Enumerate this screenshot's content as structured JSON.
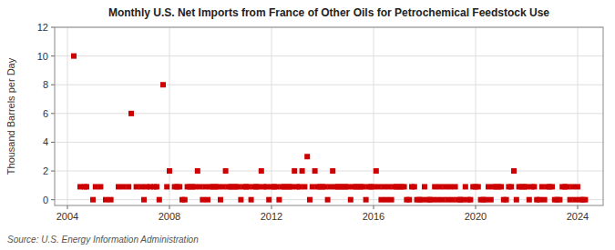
{
  "chart_data": {
    "type": "scatter",
    "title": "Monthly U.S. Net Imports from France of Other Oils for Petrochemical Feedstock Use",
    "ylabel": "Thousand Barrels per Day",
    "annotations": [
      "Source: U.S. Energy Information Administration"
    ],
    "color": "#cc0000",
    "marker": "square",
    "grid": true,
    "xlim": [
      2003.5,
      2025.0
    ],
    "xticks": [
      2004,
      2008,
      2012,
      2016,
      2020,
      2024
    ],
    "ylim": [
      -0.4,
      12
    ],
    "yticks": [
      0,
      2,
      4,
      6,
      8,
      10,
      12
    ],
    "x": [
      2004.25,
      2004.5,
      2004.67,
      2004.75,
      2005.0,
      2005.1,
      2005.3,
      2005.5,
      2005.7,
      2006.0,
      2006.2,
      2006.4,
      2006.5,
      2006.7,
      2006.9,
      2007.0,
      2007.1,
      2007.25,
      2007.4,
      2007.5,
      2007.6,
      2007.75,
      2007.9,
      2008.0,
      2008.2,
      2008.3,
      2008.4,
      2008.5,
      2008.6,
      2008.7,
      2008.8,
      2008.9,
      2009.0,
      2009.1,
      2009.2,
      2009.3,
      2009.4,
      2009.5,
      2009.6,
      2009.7,
      2009.8,
      2009.9,
      2010.0,
      2010.1,
      2010.2,
      2010.3,
      2010.4,
      2010.5,
      2010.6,
      2010.7,
      2010.8,
      2010.9,
      2011.0,
      2011.1,
      2011.2,
      2011.3,
      2011.4,
      2011.5,
      2011.6,
      2011.7,
      2011.8,
      2011.9,
      2012.0,
      2012.1,
      2012.2,
      2012.3,
      2012.4,
      2012.5,
      2012.6,
      2012.7,
      2012.8,
      2012.9,
      2013.0,
      2013.1,
      2013.2,
      2013.3,
      2013.4,
      2013.5,
      2013.6,
      2013.7,
      2013.8,
      2013.9,
      2014.0,
      2014.1,
      2014.2,
      2014.3,
      2014.4,
      2014.5,
      2014.6,
      2014.7,
      2014.8,
      2014.9,
      2015.0,
      2015.1,
      2015.2,
      2015.3,
      2015.4,
      2015.5,
      2015.6,
      2015.7,
      2015.8,
      2015.9,
      2016.0,
      2016.1,
      2016.2,
      2016.3,
      2016.4,
      2016.5,
      2016.6,
      2016.7,
      2016.8,
      2016.9,
      2017.0,
      2017.1,
      2017.2,
      2017.3,
      2017.4,
      2017.5,
      2017.6,
      2017.7,
      2017.8,
      2017.9,
      2018.0,
      2018.1,
      2018.2,
      2018.3,
      2018.4,
      2018.5,
      2018.6,
      2018.7,
      2018.8,
      2018.9,
      2019.0,
      2019.1,
      2019.2,
      2019.3,
      2019.4,
      2019.5,
      2019.6,
      2019.7,
      2019.8,
      2019.9,
      2020.0,
      2020.1,
      2020.2,
      2020.3,
      2020.4,
      2020.5,
      2020.6,
      2020.7,
      2020.8,
      2020.9,
      2021.0,
      2021.1,
      2021.2,
      2021.3,
      2021.4,
      2021.5,
      2021.6,
      2021.7,
      2021.8,
      2021.9,
      2022.0,
      2022.1,
      2022.2,
      2022.3,
      2022.4,
      2022.5,
      2022.6,
      2022.7,
      2022.8,
      2022.9,
      2023.0,
      2023.1,
      2023.2,
      2023.3,
      2023.4,
      2023.5,
      2023.6,
      2023.7,
      2023.8,
      2023.9,
      2024.0,
      2024.1,
      2024.2,
      2024.3
    ],
    "values": [
      10.0,
      0.9,
      0.9,
      0.9,
      0.0,
      0.9,
      0.9,
      0.0,
      0.0,
      0.9,
      0.9,
      0.9,
      6.0,
      0.9,
      0.9,
      0.0,
      0.9,
      0.9,
      0.9,
      0.9,
      0.0,
      8.0,
      0.9,
      2.0,
      0.9,
      0.9,
      0.9,
      0.0,
      0.0,
      0.9,
      0.9,
      0.9,
      0.9,
      2.0,
      0.9,
      0.0,
      0.9,
      0.0,
      0.9,
      0.9,
      0.9,
      0.9,
      0.0,
      0.9,
      2.0,
      0.9,
      0.9,
      0.9,
      0.9,
      0.9,
      0.0,
      0.9,
      0.9,
      0.9,
      0.0,
      0.9,
      0.9,
      0.9,
      2.0,
      0.9,
      0.9,
      0.0,
      0.9,
      0.9,
      0.9,
      0.0,
      0.9,
      0.9,
      0.9,
      0.9,
      0.9,
      2.0,
      0.9,
      0.9,
      2.0,
      0.9,
      3.0,
      0.0,
      0.9,
      2.0,
      0.9,
      0.9,
      0.9,
      0.9,
      0.0,
      0.9,
      2.0,
      0.9,
      0.9,
      0.9,
      0.9,
      0.9,
      0.9,
      0.0,
      0.9,
      0.9,
      0.9,
      0.9,
      0.9,
      0.0,
      0.9,
      0.9,
      0.9,
      2.0,
      0.9,
      0.0,
      0.9,
      0.0,
      0.9,
      0.0,
      0.9,
      0.9,
      0.9,
      0.9,
      0.9,
      0.0,
      0.0,
      0.9,
      0.9,
      0.0,
      0.0,
      0.0,
      0.9,
      0.0,
      0.0,
      0.0,
      0.9,
      0.0,
      0.9,
      0.0,
      0.9,
      0.0,
      0.9,
      0.0,
      0.9,
      0.0,
      0.0,
      0.0,
      0.9,
      0.0,
      0.0,
      0.9,
      0.9,
      0.9,
      0.0,
      0.0,
      0.0,
      0.9,
      0.0,
      0.9,
      0.9,
      0.9,
      0.9,
      0.0,
      0.0,
      0.9,
      0.9,
      2.0,
      0.0,
      0.9,
      0.9,
      0.9,
      0.9,
      0.0,
      0.9,
      0.9,
      0.0,
      0.0,
      0.9,
      0.0,
      0.9,
      0.9,
      0.9,
      0.0,
      0.0,
      0.0,
      0.9,
      0.9,
      0.9,
      0.0,
      0.9,
      0.0,
      0.9,
      0.0,
      0.0,
      0.0
    ]
  }
}
